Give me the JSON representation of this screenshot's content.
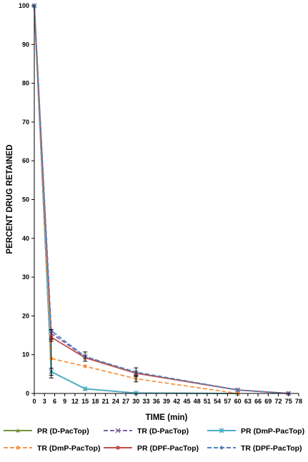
{
  "chart_data": {
    "type": "line",
    "title": "",
    "xlabel": "TIME (min)",
    "ylabel": "PERCENT DRUG RETAINED",
    "xlim": [
      0,
      78
    ],
    "ylim": [
      0,
      100
    ],
    "x_ticks": [
      0,
      3,
      6,
      9,
      12,
      15,
      18,
      21,
      24,
      27,
      30,
      33,
      36,
      39,
      42,
      45,
      48,
      51,
      54,
      57,
      60,
      63,
      66,
      69,
      72,
      75,
      78
    ],
    "y_ticks": [
      0,
      10,
      20,
      30,
      40,
      50,
      60,
      70,
      80,
      90,
      100
    ],
    "grid": false,
    "legend_position": "bottom",
    "series": [
      {
        "name": "PR (D-PacTop)",
        "color": "#77933C",
        "dash": "solid",
        "marker": "triangle",
        "points": [
          [
            0,
            100
          ],
          [
            5,
            5.6
          ],
          [
            15,
            1.2
          ],
          [
            30,
            0.1
          ],
          [
            60,
            0
          ]
        ]
      },
      {
        "name": "TR (D-PacTop)",
        "color": "#7F5FA7",
        "dash": "dash",
        "marker": "x",
        "points": [
          [
            0,
            100
          ],
          [
            5,
            15.5
          ],
          [
            15,
            9.5
          ],
          [
            30,
            5.3
          ],
          [
            60,
            0.9
          ],
          [
            75,
            0
          ]
        ]
      },
      {
        "name": "PR (DmP-PacTop)",
        "color": "#4BACC6",
        "dash": "solid",
        "marker": "star",
        "points": [
          [
            0,
            100
          ],
          [
            5,
            5.6
          ],
          [
            15,
            1.2
          ],
          [
            30,
            0.1
          ],
          [
            60,
            0
          ]
        ]
      },
      {
        "name": "TR (DmP-PacTop)",
        "color": "#F79646",
        "dash": "dash",
        "marker": "circle",
        "points": [
          [
            0,
            100
          ],
          [
            5,
            9
          ],
          [
            15,
            7
          ],
          [
            30,
            3.8
          ],
          [
            60,
            0
          ]
        ]
      },
      {
        "name": "PR (DPF-PacTop)",
        "color": "#C0504D",
        "dash": "solid",
        "marker": "square",
        "points": [
          [
            0,
            100
          ],
          [
            5,
            14.5
          ],
          [
            15,
            9.2
          ],
          [
            30,
            5.2
          ],
          [
            60,
            0.9
          ],
          [
            75,
            0
          ]
        ]
      },
      {
        "name": "TR (DPF-PacTop)",
        "color": "#4F81BD",
        "dash": "dash",
        "marker": "diamond",
        "points": [
          [
            0,
            100
          ],
          [
            5,
            16.2
          ],
          [
            15,
            9.5
          ],
          [
            30,
            5.5
          ],
          [
            60,
            0.9
          ],
          [
            75,
            0
          ]
        ]
      }
    ],
    "error_bars": [
      {
        "x": 5,
        "y": 5.6,
        "err": 0.9
      },
      {
        "x": 5,
        "y": 9,
        "err": 5
      },
      {
        "x": 5,
        "y": 15,
        "err": 1.5
      },
      {
        "x": 15,
        "y": 9.5,
        "err": 1.2
      },
      {
        "x": 30,
        "y": 3.8,
        "err": 0.8
      },
      {
        "x": 30,
        "y": 5.5,
        "err": 1.1
      }
    ]
  }
}
